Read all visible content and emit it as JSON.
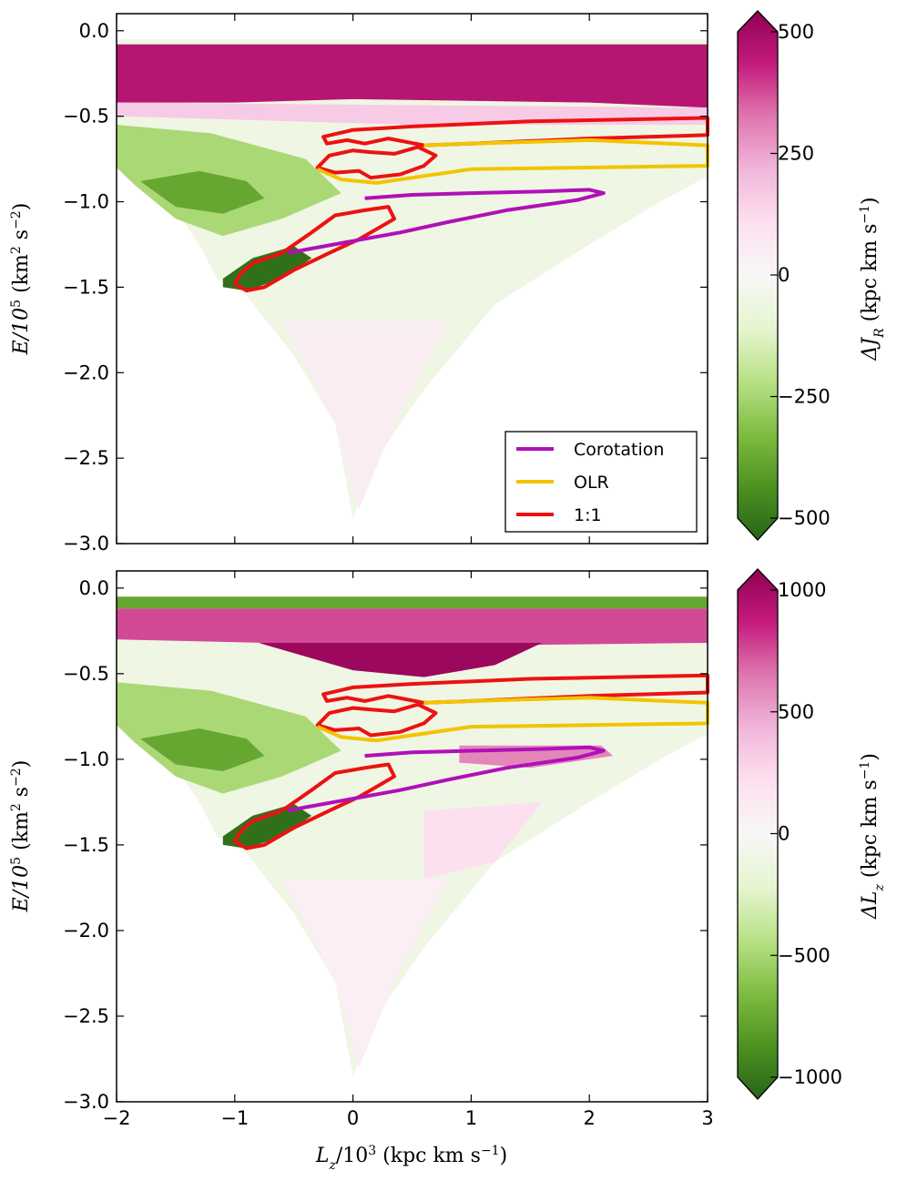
{
  "chart_data": [
    {
      "type": "heatmap",
      "panel": "top",
      "xlabel": "",
      "ylabel": "E/10^5 (km^2 s^-2)",
      "ylabel_parts": {
        "base": "E/10",
        "exp": "5",
        "unit_open": " (km",
        "unit_exp1": "2",
        "unit_mid": " s",
        "unit_exp2": "−2",
        "unit_close": ")"
      },
      "xlim": [
        -2,
        3
      ],
      "ylim": [
        -3.0,
        0.1
      ],
      "yticks": [
        0.0,
        -0.5,
        -1.0,
        -1.5,
        -2.0,
        -2.5,
        -3.0
      ],
      "ytick_labels": [
        "0.0",
        "−0.5",
        "−1.0",
        "−1.5",
        "−2.0",
        "−2.5",
        "−3.0"
      ],
      "colorbar": {
        "label": "ΔJ_R (kpc km s^-1)",
        "label_parts": {
          "delta": "ΔJ",
          "sub": "R",
          "unit_open": " (kpc km s",
          "unit_exp": "−1",
          "unit_close": ")"
        },
        "range": [
          -500,
          500
        ],
        "ticks": [
          500,
          250,
          0,
          -250,
          -500
        ],
        "tick_labels": [
          "500",
          "250",
          "0",
          "−250",
          "−500"
        ],
        "colormap": [
          "#276419",
          "#4d9221",
          "#7fbc41",
          "#b8e186",
          "#e6f5d0",
          "#f7f7f7",
          "#fde0ef",
          "#f1b6da",
          "#de77ae",
          "#c51b7d",
          "#8e0152"
        ]
      },
      "legend": {
        "position": "lower-right",
        "entries": [
          {
            "label": "Corotation",
            "color": "#b010b8"
          },
          {
            "label": "OLR",
            "color": "#f2c400"
          },
          {
            "label": "1:1",
            "color": "#ee1111"
          }
        ]
      },
      "bands": [
        {
          "name": "upper-magenta-band",
          "e_top": -0.06,
          "e_bottom": -0.42,
          "value": 430
        },
        {
          "name": "green-wing",
          "e_top": -0.65,
          "e_bottom": -1.05,
          "value": -300
        },
        {
          "name": "dark-green-core",
          "e_top": -1.3,
          "e_bottom": -1.5,
          "value": -500
        }
      ],
      "contours": [
        {
          "name": "1:1",
          "color": "#ee1111",
          "points": [
            [
              -0.25,
              -0.62
            ],
            [
              0.0,
              -0.58
            ],
            [
              0.5,
              -0.56
            ],
            [
              1.5,
              -0.53
            ],
            [
              3.0,
              -0.51
            ],
            [
              3.0,
              -0.61
            ],
            [
              2.0,
              -0.63
            ],
            [
              1.0,
              -0.66
            ],
            [
              0.6,
              -0.67
            ],
            [
              0.45,
              -0.65
            ],
            [
              0.3,
              -0.63
            ],
            [
              0.1,
              -0.66
            ],
            [
              -0.05,
              -0.64
            ],
            [
              -0.22,
              -0.66
            ],
            [
              -0.25,
              -0.62
            ]
          ]
        },
        {
          "name": "1:1",
          "color": "#ee1111",
          "points": [
            [
              -0.3,
              -0.8
            ],
            [
              -0.2,
              -0.73
            ],
            [
              0.0,
              -0.7
            ],
            [
              0.15,
              -0.71
            ],
            [
              0.35,
              -0.72
            ],
            [
              0.55,
              -0.68
            ],
            [
              0.7,
              -0.73
            ],
            [
              0.6,
              -0.79
            ],
            [
              0.4,
              -0.84
            ],
            [
              0.15,
              -0.86
            ],
            [
              0.05,
              -0.82
            ],
            [
              -0.15,
              -0.83
            ],
            [
              -0.3,
              -0.8
            ]
          ]
        },
        {
          "name": "1:1",
          "color": "#ee1111",
          "points": [
            [
              -0.95,
              -1.42
            ],
            [
              -0.85,
              -1.36
            ],
            [
              -0.6,
              -1.3
            ],
            [
              -0.35,
              -1.18
            ],
            [
              -0.15,
              -1.08
            ],
            [
              0.1,
              -1.05
            ],
            [
              0.3,
              -1.03
            ],
            [
              0.35,
              -1.1
            ],
            [
              0.2,
              -1.16
            ],
            [
              0.05,
              -1.22
            ],
            [
              -0.2,
              -1.3
            ],
            [
              -0.5,
              -1.4
            ],
            [
              -0.75,
              -1.5
            ],
            [
              -0.9,
              -1.52
            ],
            [
              -1.0,
              -1.48
            ],
            [
              -0.95,
              -1.42
            ]
          ]
        },
        {
          "name": "OLR",
          "color": "#f2c400",
          "points": [
            [
              0.6,
              -0.67
            ],
            [
              1.0,
              -0.66
            ],
            [
              2.0,
              -0.64
            ],
            [
              3.0,
              -0.67
            ],
            [
              3.0,
              -0.79
            ],
            [
              2.0,
              -0.8
            ],
            [
              1.0,
              -0.81
            ],
            [
              0.5,
              -0.86
            ],
            [
              0.2,
              -0.89
            ],
            [
              -0.1,
              -0.87
            ],
            [
              -0.3,
              -0.81
            ]
          ]
        },
        {
          "name": "Corotation",
          "color": "#b010b8",
          "points": [
            [
              0.1,
              -0.98
            ],
            [
              0.5,
              -0.96
            ],
            [
              1.0,
              -0.95
            ],
            [
              1.6,
              -0.94
            ],
            [
              2.0,
              -0.93
            ],
            [
              2.12,
              -0.95
            ],
            [
              1.9,
              -0.99
            ],
            [
              1.3,
              -1.05
            ],
            [
              0.8,
              -1.12
            ],
            [
              0.4,
              -1.18
            ],
            [
              0.0,
              -1.23
            ],
            [
              -0.4,
              -1.28
            ],
            [
              -0.55,
              -1.3
            ]
          ]
        }
      ]
    },
    {
      "type": "heatmap",
      "panel": "bottom",
      "xlabel": "L_z/10^3 (kpc km s^-1)",
      "xlabel_parts": {
        "base": "L",
        "sub": "z",
        "mid": "/10",
        "exp": "3",
        "unit_open": " (kpc km s",
        "unit_exp": "−1",
        "unit_close": ")"
      },
      "ylabel": "E/10^5 (km^2 s^-2)",
      "ylabel_parts": {
        "base": "E/10",
        "exp": "5",
        "unit_open": " (km",
        "unit_exp1": "2",
        "unit_mid": " s",
        "unit_exp2": "−2",
        "unit_close": ")"
      },
      "xlim": [
        -2,
        3
      ],
      "ylim": [
        -3.0,
        0.1
      ],
      "xticks": [
        -2,
        -1,
        0,
        1,
        2,
        3
      ],
      "xtick_labels": [
        "−2",
        "−1",
        "0",
        "1",
        "2",
        "3"
      ],
      "yticks": [
        0.0,
        -0.5,
        -1.0,
        -1.5,
        -2.0,
        -2.5,
        -3.0
      ],
      "ytick_labels": [
        "0.0",
        "−0.5",
        "−1.0",
        "−1.5",
        "−2.0",
        "−2.5",
        "−3.0"
      ],
      "colorbar": {
        "label": "ΔL_z (kpc km s^-1)",
        "label_parts": {
          "delta": "ΔL",
          "sub": "z",
          "unit_open": " (kpc km s",
          "unit_exp": "−1",
          "unit_close": ")"
        },
        "range": [
          -1000,
          1000
        ],
        "ticks": [
          1000,
          500,
          0,
          -500,
          -1000
        ],
        "tick_labels": [
          "1000",
          "500",
          "0",
          "−500",
          "−1000"
        ],
        "colormap": [
          "#276419",
          "#4d9221",
          "#7fbc41",
          "#b8e186",
          "#e6f5d0",
          "#f7f7f7",
          "#fde0ef",
          "#f1b6da",
          "#de77ae",
          "#c51b7d",
          "#8e0152"
        ]
      },
      "bands": [
        {
          "name": "upper-magenta-band",
          "e_top": -0.1,
          "e_bottom": -0.3,
          "value": 800
        },
        {
          "name": "magenta-lobe",
          "e_top": -0.3,
          "e_bottom": -0.5,
          "value": 900
        },
        {
          "name": "green-wing",
          "e_top": -0.55,
          "e_bottom": -1.05,
          "value": -500
        },
        {
          "name": "pink-streak",
          "e_top": -0.9,
          "e_bottom": -1.05,
          "value": 450
        },
        {
          "name": "dark-green-core",
          "e_top": -1.3,
          "e_bottom": -1.5,
          "value": -1000
        }
      ],
      "contours": [
        {
          "name": "1:1",
          "color": "#ee1111",
          "points": [
            [
              -0.25,
              -0.62
            ],
            [
              0.0,
              -0.58
            ],
            [
              0.5,
              -0.56
            ],
            [
              1.5,
              -0.53
            ],
            [
              3.0,
              -0.51
            ],
            [
              3.0,
              -0.61
            ],
            [
              2.0,
              -0.63
            ],
            [
              1.0,
              -0.66
            ],
            [
              0.6,
              -0.67
            ],
            [
              0.45,
              -0.65
            ],
            [
              0.3,
              -0.63
            ],
            [
              0.1,
              -0.66
            ],
            [
              -0.05,
              -0.64
            ],
            [
              -0.22,
              -0.66
            ],
            [
              -0.25,
              -0.62
            ]
          ]
        },
        {
          "name": "1:1",
          "color": "#ee1111",
          "points": [
            [
              -0.3,
              -0.8
            ],
            [
              -0.2,
              -0.73
            ],
            [
              0.0,
              -0.7
            ],
            [
              0.15,
              -0.71
            ],
            [
              0.35,
              -0.72
            ],
            [
              0.55,
              -0.68
            ],
            [
              0.7,
              -0.73
            ],
            [
              0.6,
              -0.79
            ],
            [
              0.4,
              -0.84
            ],
            [
              0.15,
              -0.86
            ],
            [
              0.05,
              -0.82
            ],
            [
              -0.15,
              -0.83
            ],
            [
              -0.3,
              -0.8
            ]
          ]
        },
        {
          "name": "1:1",
          "color": "#ee1111",
          "points": [
            [
              -0.95,
              -1.42
            ],
            [
              -0.85,
              -1.36
            ],
            [
              -0.6,
              -1.3
            ],
            [
              -0.35,
              -1.18
            ],
            [
              -0.15,
              -1.08
            ],
            [
              0.1,
              -1.05
            ],
            [
              0.3,
              -1.03
            ],
            [
              0.35,
              -1.1
            ],
            [
              0.2,
              -1.16
            ],
            [
              0.05,
              -1.22
            ],
            [
              -0.2,
              -1.3
            ],
            [
              -0.5,
              -1.4
            ],
            [
              -0.75,
              -1.5
            ],
            [
              -0.9,
              -1.52
            ],
            [
              -1.0,
              -1.48
            ],
            [
              -0.95,
              -1.42
            ]
          ]
        },
        {
          "name": "OLR",
          "color": "#f2c400",
          "points": [
            [
              0.6,
              -0.67
            ],
            [
              1.0,
              -0.66
            ],
            [
              2.0,
              -0.64
            ],
            [
              3.0,
              -0.67
            ],
            [
              3.0,
              -0.79
            ],
            [
              2.0,
              -0.8
            ],
            [
              1.0,
              -0.81
            ],
            [
              0.5,
              -0.86
            ],
            [
              0.2,
              -0.89
            ],
            [
              -0.1,
              -0.87
            ],
            [
              -0.3,
              -0.81
            ]
          ]
        },
        {
          "name": "Corotation",
          "color": "#b010b8",
          "points": [
            [
              0.1,
              -0.98
            ],
            [
              0.5,
              -0.96
            ],
            [
              1.0,
              -0.95
            ],
            [
              1.6,
              -0.94
            ],
            [
              2.0,
              -0.93
            ],
            [
              2.12,
              -0.95
            ],
            [
              1.9,
              -0.99
            ],
            [
              1.3,
              -1.05
            ],
            [
              0.8,
              -1.12
            ],
            [
              0.4,
              -1.18
            ],
            [
              0.0,
              -1.23
            ],
            [
              -0.4,
              -1.28
            ],
            [
              -0.55,
              -1.3
            ]
          ]
        }
      ]
    }
  ]
}
